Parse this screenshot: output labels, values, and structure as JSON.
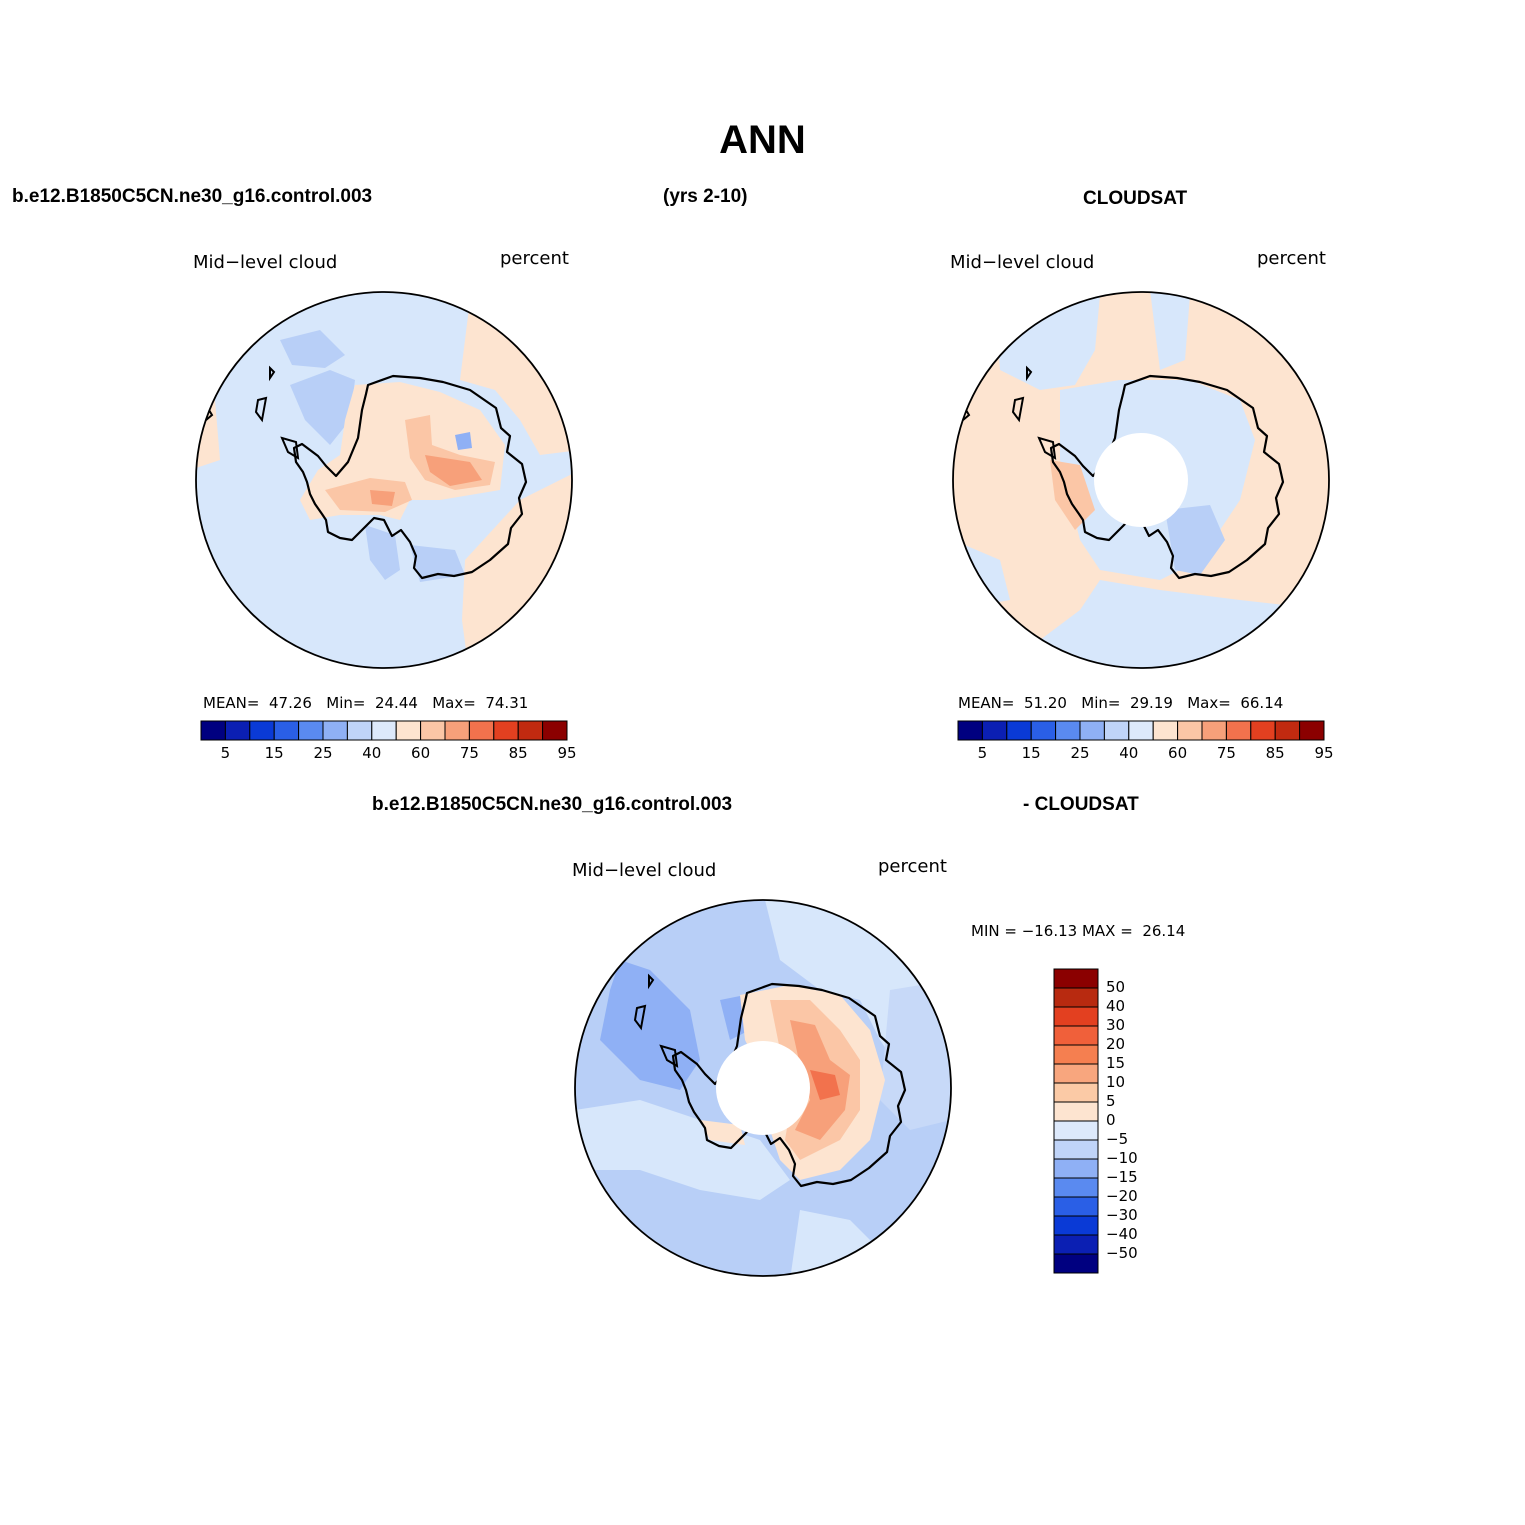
{
  "title": "ANN",
  "header": {
    "case_name": "b.e12.B1850C5CN.ne30_g16.control.003",
    "years": "(yrs 2-10)",
    "obs_name": "CLOUDSAT",
    "diff_case_name": "b.e12.B1850C5CN.ne30_g16.control.003",
    "diff_obs_name": "- CLOUDSAT"
  },
  "panels": [
    {
      "id": "model",
      "variable": "Mid−level cloud",
      "units": "percent",
      "stats_text": "MEAN=  47.26   Min=  24.44   Max=  74.31",
      "stats": {
        "mean": 47.26,
        "min": 24.44,
        "max": 74.31
      }
    },
    {
      "id": "obs",
      "variable": "Mid−level cloud",
      "units": "percent",
      "stats_text": "MEAN=  51.20   Min=  29.19   Max=  66.14",
      "stats": {
        "mean": 51.2,
        "min": 29.19,
        "max": 66.14
      }
    },
    {
      "id": "diff",
      "variable": "Mid−level cloud",
      "units": "percent",
      "stats_text": "MIN = −16.13 MAX =  26.14",
      "stats": {
        "min": -16.13,
        "max": 26.14
      }
    }
  ],
  "colorbar_abs": {
    "tick_labels": [
      "5",
      "15",
      "25",
      "40",
      "60",
      "75",
      "85",
      "95"
    ],
    "colors": [
      "#000080",
      "#0b1fb3",
      "#0a3ad6",
      "#2a5fe6",
      "#5a8af0",
      "#8fb0f5",
      "#c0d4f8",
      "#dde9fb",
      "#fde4d0",
      "#fbc6a6",
      "#f7a07a",
      "#f2724d",
      "#e34020",
      "#c12a10",
      "#8b0000"
    ]
  },
  "colorbar_diff": {
    "tick_labels": [
      "50",
      "40",
      "30",
      "20",
      "15",
      "10",
      "5",
      "0",
      "−5",
      "−10",
      "−15",
      "−20",
      "−30",
      "−40",
      "−50"
    ],
    "colors": [
      "#8b0000",
      "#b82a10",
      "#e34020",
      "#f0603a",
      "#f57f50",
      "#f8a67e",
      "#fbcaa6",
      "#fde4d0",
      "#dde9fb",
      "#c0d4f8",
      "#8fb0f5",
      "#5a8af0",
      "#2a5fe6",
      "#0a3ad6",
      "#0b1fb3",
      "#000080"
    ]
  },
  "map_colors": {
    "light_blue": "#d7e7fb",
    "mid_blue": "#b8cff7",
    "blue": "#8fb0f5",
    "deep_blue": "#5a8af0",
    "peach": "#fde4d0",
    "light_orange": "#fbc6a6",
    "orange": "#f7a07a",
    "red_orange": "#f2724d",
    "coast": "#000000"
  },
  "projection": "south-polar stereographic",
  "region": "Antarctica"
}
